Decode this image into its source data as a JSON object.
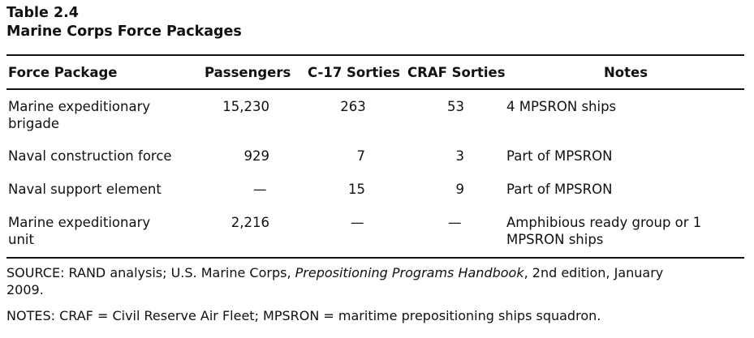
{
  "table": {
    "label": "Table 2.4",
    "title": "Marine Corps Force Packages",
    "headers": {
      "force_package": "Force Package",
      "passengers": "Passengers",
      "c17": "C-17 Sorties",
      "craf": "CRAF Sorties",
      "notes": "Notes"
    },
    "rows": [
      {
        "package_line1": "Marine expeditionary",
        "package_line2": "brigade",
        "passengers": "15,230",
        "c17": "263",
        "craf": "53",
        "notes_line1": "4 MPSRON ships",
        "notes_line2": ""
      },
      {
        "package_line1": "Naval construction force",
        "package_line2": "",
        "passengers": "929",
        "c17": "7",
        "craf": "3",
        "notes_line1": "Part of MPSRON",
        "notes_line2": ""
      },
      {
        "package_line1": "Naval support element",
        "package_line2": "",
        "passengers": "—",
        "c17": "15",
        "craf": "9",
        "notes_line1": "Part of MPSRON",
        "notes_line2": ""
      },
      {
        "package_line1": "Marine expeditionary",
        "package_line2": "unit",
        "passengers": "2,216",
        "c17": "—",
        "craf": "—",
        "notes_line1": "Amphibious ready group or 1",
        "notes_line2": "MPSRON ships"
      }
    ],
    "source": {
      "prefix": "SOURCE: RAND analysis; U.S. Marine Corps, ",
      "italic": "Prepositioning Programs Handbook",
      "suffix": ", 2nd edition, January",
      "line2": "2009."
    },
    "notes_footer": "NOTES: CRAF = Civil Reserve Air Fleet; MPSRON = maritime prepositioning ships squadron."
  }
}
